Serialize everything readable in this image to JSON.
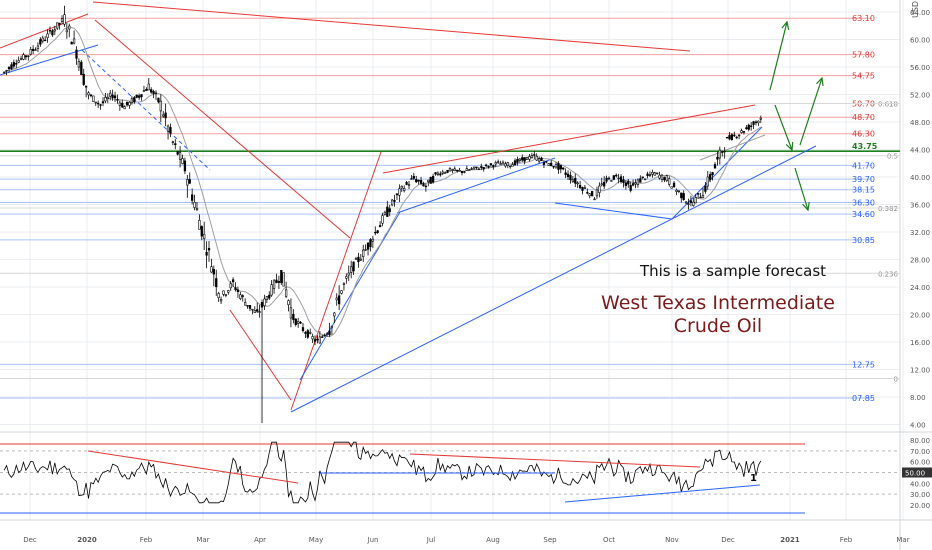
{
  "chart_data": [
    {
      "type": "candlestick",
      "title": "",
      "annotations": {
        "forecast_note": "This is a sample forecast",
        "instrument_line1": "West Texas Intermediate",
        "instrument_line2": "Crude Oil"
      },
      "currency_label": "USD",
      "y_axis_ticks": [
        "64.00",
        "60.00",
        "56.00",
        "52.00",
        "48.00",
        "44.00",
        "40.00",
        "36.00",
        "32.00",
        "28.00",
        "24.00",
        "20.00",
        "16.00",
        "12.00",
        "8.00",
        "4.00"
      ],
      "ylim": [
        4,
        66
      ],
      "x_axis_ticks": [
        "Dec",
        "2020",
        "Feb",
        "Mar",
        "Apr",
        "May",
        "Jun",
        "Jul",
        "Aug",
        "Sep",
        "Oct",
        "Nov",
        "Dec",
        "2021",
        "Feb",
        "Mar"
      ],
      "current_price_label": "43.75",
      "red_levels": [
        "63.10",
        "57.80",
        "54.75",
        "50.70",
        "48.70",
        "46.30"
      ],
      "blue_levels": [
        "41.70",
        "39.70",
        "38.15",
        "36.30",
        "34.60",
        "30.85",
        "12.75",
        "07.85"
      ],
      "fib_labels": [
        {
          "label": "0.618",
          "price": 50.7
        },
        {
          "label": "0.5",
          "price": 43.1
        },
        {
          "label": "0.382",
          "price": 35.5
        },
        {
          "label": "0.236",
          "price": 26.0
        },
        {
          "label": "0",
          "price": 10.7
        }
      ],
      "price_series_weekly_close": [
        55.2,
        56.8,
        57.8,
        59.5,
        61.2,
        63.0,
        58.5,
        52.0,
        50.5,
        52.0,
        50.2,
        51.5,
        53.2,
        50.5,
        45.0,
        41.3,
        35.0,
        28.7,
        22.5,
        24.5,
        21.8,
        20.0,
        23.0,
        26.0,
        19.5,
        17.5,
        16.0,
        18.0,
        23.5,
        27.0,
        29.4,
        32.5,
        35.5,
        38.2,
        39.8,
        38.7,
        40.5,
        41.0,
        40.8,
        41.2,
        41.5,
        42.0,
        41.8,
        42.5,
        43.0,
        42.0,
        41.5,
        40.0,
        38.5,
        37.2,
        39.5,
        40.2,
        38.5,
        39.8,
        40.5,
        39.7,
        37.8,
        36.0,
        37.8,
        41.4,
        45.5,
        46.3,
        47.5,
        48.8
      ]
    },
    {
      "type": "line",
      "indicator": "oscillator",
      "y_axis_ticks": [
        "80.00",
        "70.00",
        "60.00",
        "50.00",
        "40.00",
        "30.00",
        "20.00"
      ],
      "ylim": [
        15,
        83
      ],
      "reference_lines": [
        70,
        50,
        30
      ],
      "current_value_label": "50.00",
      "wave_label": "1"
    }
  ],
  "colors": {
    "red": "#e53935",
    "blue": "#2962ff",
    "green": "#1b7f1b",
    "dark_red": "#7b1a1a",
    "candle": "#000000",
    "grid": "#e9edf2",
    "axis_text": "#555555"
  }
}
